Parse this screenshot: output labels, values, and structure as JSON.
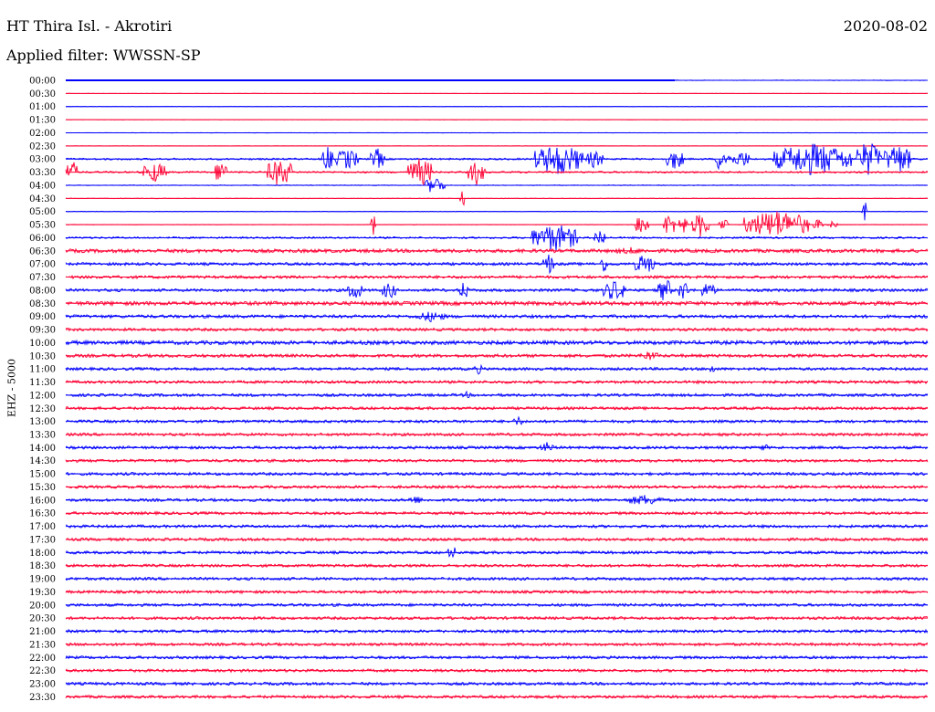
{
  "header": {
    "station": "HT Thira Isl. - Akrotiri",
    "date": "2020-08-02",
    "filter": "Applied filter: WWSSN-SP",
    "channel": "EHZ - 5000"
  },
  "chart_data": {
    "type": "line",
    "title": "HT Thira Isl. - Akrotiri",
    "ylabel": "EHZ - 5000",
    "xlabel": "",
    "row_labels": [
      "00:00",
      "00:30",
      "01:00",
      "01:30",
      "02:00",
      "02:30",
      "03:00",
      "03:30",
      "04:00",
      "04:30",
      "05:00",
      "05:30",
      "06:00",
      "06:30",
      "07:00",
      "07:30",
      "08:00",
      "08:30",
      "09:00",
      "09:30",
      "10:00",
      "10:30",
      "11:00",
      "11:30",
      "12:00",
      "12:30",
      "13:00",
      "13:30",
      "14:00",
      "14:30",
      "15:00",
      "15:30",
      "16:00",
      "16:30",
      "17:00",
      "17:30",
      "18:00",
      "18:30",
      "19:00",
      "19:30",
      "20:00",
      "20:30",
      "21:00",
      "21:30",
      "22:00",
      "22:30",
      "23:00",
      "23:30"
    ],
    "colors": {
      "even": "#0000ff",
      "odd": "#ff0033"
    },
    "x_range_minutes": [
      0,
      30
    ],
    "noise": [
      0.3,
      0.2,
      0.2,
      0.2,
      0.2,
      0.2,
      1.0,
      1.0,
      0.4,
      0.3,
      0.3,
      0.3,
      1.0,
      2.0,
      1.6,
      1.6,
      1.6,
      2.2,
      1.8,
      1.6,
      2.2,
      1.8,
      1.6,
      1.6,
      1.6,
      1.6,
      1.6,
      1.6,
      1.6,
      1.6,
      1.6,
      1.6,
      1.6,
      1.6,
      1.6,
      1.6,
      1.6,
      1.6,
      1.6,
      1.6,
      1.6,
      1.6,
      1.6,
      1.6,
      1.6,
      1.6,
      1.6,
      1.6
    ],
    "events": {
      "6": [
        [
          8.9,
          9.3,
          14
        ],
        [
          9.4,
          10.2,
          12
        ],
        [
          10.6,
          11.1,
          12
        ],
        [
          16.3,
          18.0,
          18
        ],
        [
          18.1,
          18.7,
          10
        ],
        [
          20.9,
          21.5,
          12
        ],
        [
          22.6,
          23.0,
          14
        ],
        [
          23.0,
          23.3,
          8
        ],
        [
          23.3,
          23.8,
          10
        ],
        [
          24.6,
          27.4,
          18
        ],
        [
          27.5,
          28.4,
          20
        ],
        [
          28.5,
          29.4,
          18
        ]
      ],
      "7": [
        [
          0.0,
          0.4,
          14
        ],
        [
          2.7,
          3.5,
          12
        ],
        [
          5.2,
          5.6,
          14
        ],
        [
          7.0,
          7.9,
          16
        ],
        [
          11.9,
          12.8,
          16
        ],
        [
          14.0,
          14.6,
          14
        ]
      ],
      "8": [
        [
          12.5,
          13.2,
          10
        ]
      ],
      "9": [
        [
          13.7,
          13.9,
          10
        ]
      ],
      "10": [
        [
          27.7,
          27.9,
          12
        ]
      ],
      "11": [
        [
          10.6,
          10.8,
          12
        ],
        [
          19.8,
          20.3,
          12
        ],
        [
          20.8,
          21.2,
          14
        ],
        [
          21.3,
          21.7,
          10
        ],
        [
          21.8,
          22.4,
          14
        ],
        [
          22.7,
          23.1,
          8
        ],
        [
          23.6,
          25.9,
          16
        ],
        [
          26.0,
          26.4,
          6
        ],
        [
          26.5,
          26.9,
          4
        ]
      ],
      "12": [
        [
          16.2,
          17.8,
          16
        ],
        [
          18.4,
          18.8,
          10
        ]
      ],
      "13": [
        [
          19.0,
          20.3,
          4
        ]
      ],
      "14": [
        [
          16.6,
          17.0,
          12
        ],
        [
          18.6,
          18.9,
          10
        ],
        [
          19.8,
          20.5,
          12
        ]
      ],
      "16": [
        [
          9.8,
          10.3,
          12
        ],
        [
          11.0,
          11.5,
          10
        ],
        [
          13.7,
          14.0,
          12
        ],
        [
          18.7,
          19.5,
          12
        ],
        [
          20.6,
          21.1,
          14
        ],
        [
          21.3,
          21.7,
          12
        ],
        [
          22.1,
          22.6,
          10
        ]
      ],
      "18": [
        [
          12.2,
          13.2,
          6
        ]
      ],
      "21": [
        [
          20.0,
          20.6,
          6
        ]
      ],
      "22": [
        [
          14.2,
          14.5,
          6
        ],
        [
          22.4,
          22.6,
          6
        ]
      ],
      "24": [
        [
          13.8,
          14.1,
          4
        ]
      ],
      "26": [
        [
          15.6,
          15.9,
          6
        ]
      ],
      "28": [
        [
          16.5,
          17.0,
          6
        ],
        [
          24.1,
          24.5,
          4
        ]
      ],
      "32": [
        [
          11.9,
          12.4,
          5
        ],
        [
          19.5,
          20.8,
          6
        ]
      ],
      "36": [
        [
          13.3,
          13.6,
          8
        ]
      ]
    }
  }
}
